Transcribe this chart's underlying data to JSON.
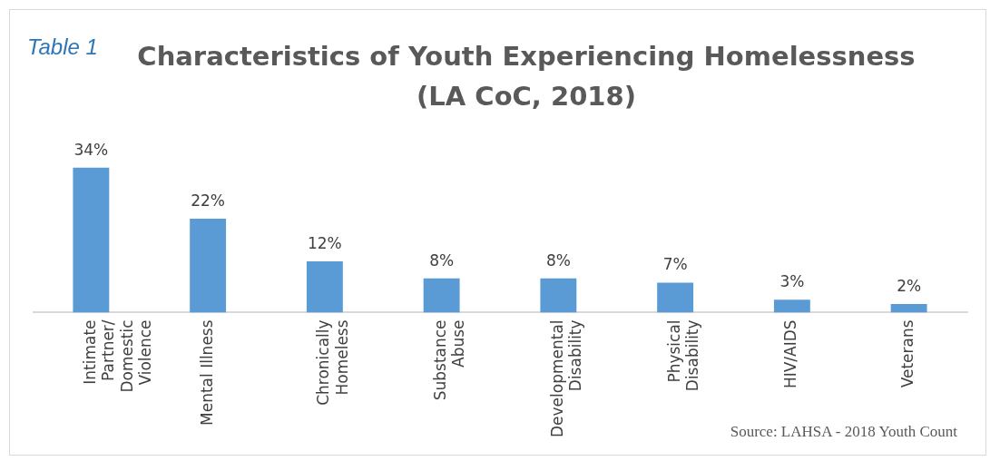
{
  "chart_data": {
    "type": "bar",
    "title": "Characteristics of Youth Experiencing Homelessness (LA CoC, 2018)",
    "subtitle": "Table 1",
    "categories": [
      "Intimate Partner/ Domestic Violence",
      "Mental Illness",
      "Chronically Homeless",
      "Substance Abuse",
      "Developmental Disability",
      "Physical Disability",
      "HIV/AIDS",
      "Veterans"
    ],
    "values": [
      34,
      22,
      12,
      8,
      8,
      7,
      3,
      2
    ],
    "value_labels": [
      "34%",
      "22%",
      "12%",
      "8%",
      "8%",
      "7%",
      "3%",
      "2%"
    ],
    "color": "#5b9bd5",
    "tick_labels": "x",
    "grid": false,
    "legend": false,
    "annotations": [
      "Source: LAHSA - 2018 Youth Count"
    ]
  }
}
